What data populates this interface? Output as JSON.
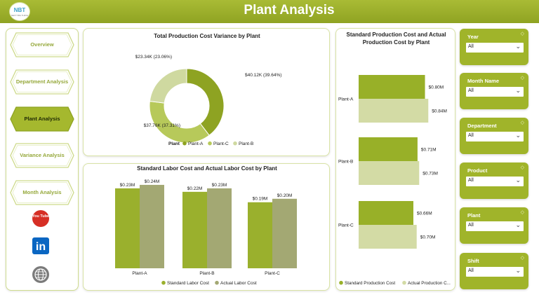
{
  "header": {
    "title": "Plant Analysis",
    "logo_text": "NBT",
    "logo_sub": "NEXT BIG THING"
  },
  "nav": {
    "items": [
      {
        "label": "Overview",
        "active": false
      },
      {
        "label": "Department Analysis",
        "active": false
      },
      {
        "label": "Plant Analysis",
        "active": true
      },
      {
        "label": "Variance Analysis",
        "active": false
      },
      {
        "label": "Month Analysis",
        "active": false
      }
    ],
    "social": [
      "youtube-icon",
      "linkedin-icon",
      "website-globe-icon"
    ],
    "youtube_text": "You Tube",
    "linkedin_text": "in"
  },
  "colors": {
    "plant_a": "#8ea322",
    "plant_c": "#b7c95a",
    "plant_b": "#cfd9a0",
    "standard": "#9ab02d",
    "actual": "#a3a873",
    "std_production": "#98b028",
    "act_production": "#d3dba5"
  },
  "filters": [
    {
      "label": "Year",
      "value": "All"
    },
    {
      "label": "Month Name",
      "value": "All"
    },
    {
      "label": "Department",
      "value": "All"
    },
    {
      "label": "Product",
      "value": "All"
    },
    {
      "label": "Plant",
      "value": "All"
    },
    {
      "label": "Shift",
      "value": "All"
    }
  ],
  "chart_data": [
    {
      "type": "pie",
      "title": "Total Production Cost Variance by Plant",
      "legend_title": "Plant",
      "legend_position": "bottom",
      "slices": [
        {
          "name": "Plant-A",
          "value": 40.12,
          "label": "$40.12K (39.64%)"
        },
        {
          "name": "Plant-C",
          "value": 37.76,
          "label": "$37.76K (37.31%)"
        },
        {
          "name": "Plant-B",
          "value": 23.34,
          "label": "$23.34K (23.06%)"
        }
      ]
    },
    {
      "type": "bar",
      "title": "Standard Labor Cost and Actual Labor Cost by Plant",
      "categories": [
        "Plant-A",
        "Plant-B",
        "Plant-C"
      ],
      "series": [
        {
          "name": "Standard Labor Cost",
          "values": [
            0.23,
            0.22,
            0.19
          ],
          "labels": [
            "$0.23M",
            "$0.22M",
            "$0.19M"
          ]
        },
        {
          "name": "Actual Labor Cost",
          "values": [
            0.24,
            0.23,
            0.2
          ],
          "labels": [
            "$0.24M",
            "$0.23M",
            "$0.20M"
          ]
        }
      ],
      "legend_position": "bottom",
      "ylim": [
        0,
        0.26
      ]
    },
    {
      "type": "bar",
      "orientation": "horizontal",
      "title_lines": [
        "Standard Production Cost and Actual",
        "Production Cost by Plant"
      ],
      "categories": [
        "Plant-A",
        "Plant-B",
        "Plant-C"
      ],
      "series": [
        {
          "name": "Standard Production Cost",
          "values": [
            0.8,
            0.71,
            0.66
          ],
          "labels": [
            "$0.80M",
            "$0.71M",
            "$0.66M"
          ]
        },
        {
          "name": "Actual Production C...",
          "values": [
            0.84,
            0.73,
            0.7
          ],
          "labels": [
            "$0.84M",
            "$0.73M",
            "$0.70M"
          ]
        }
      ],
      "legend_position": "bottom",
      "xlim": [
        0,
        1.1
      ]
    }
  ]
}
